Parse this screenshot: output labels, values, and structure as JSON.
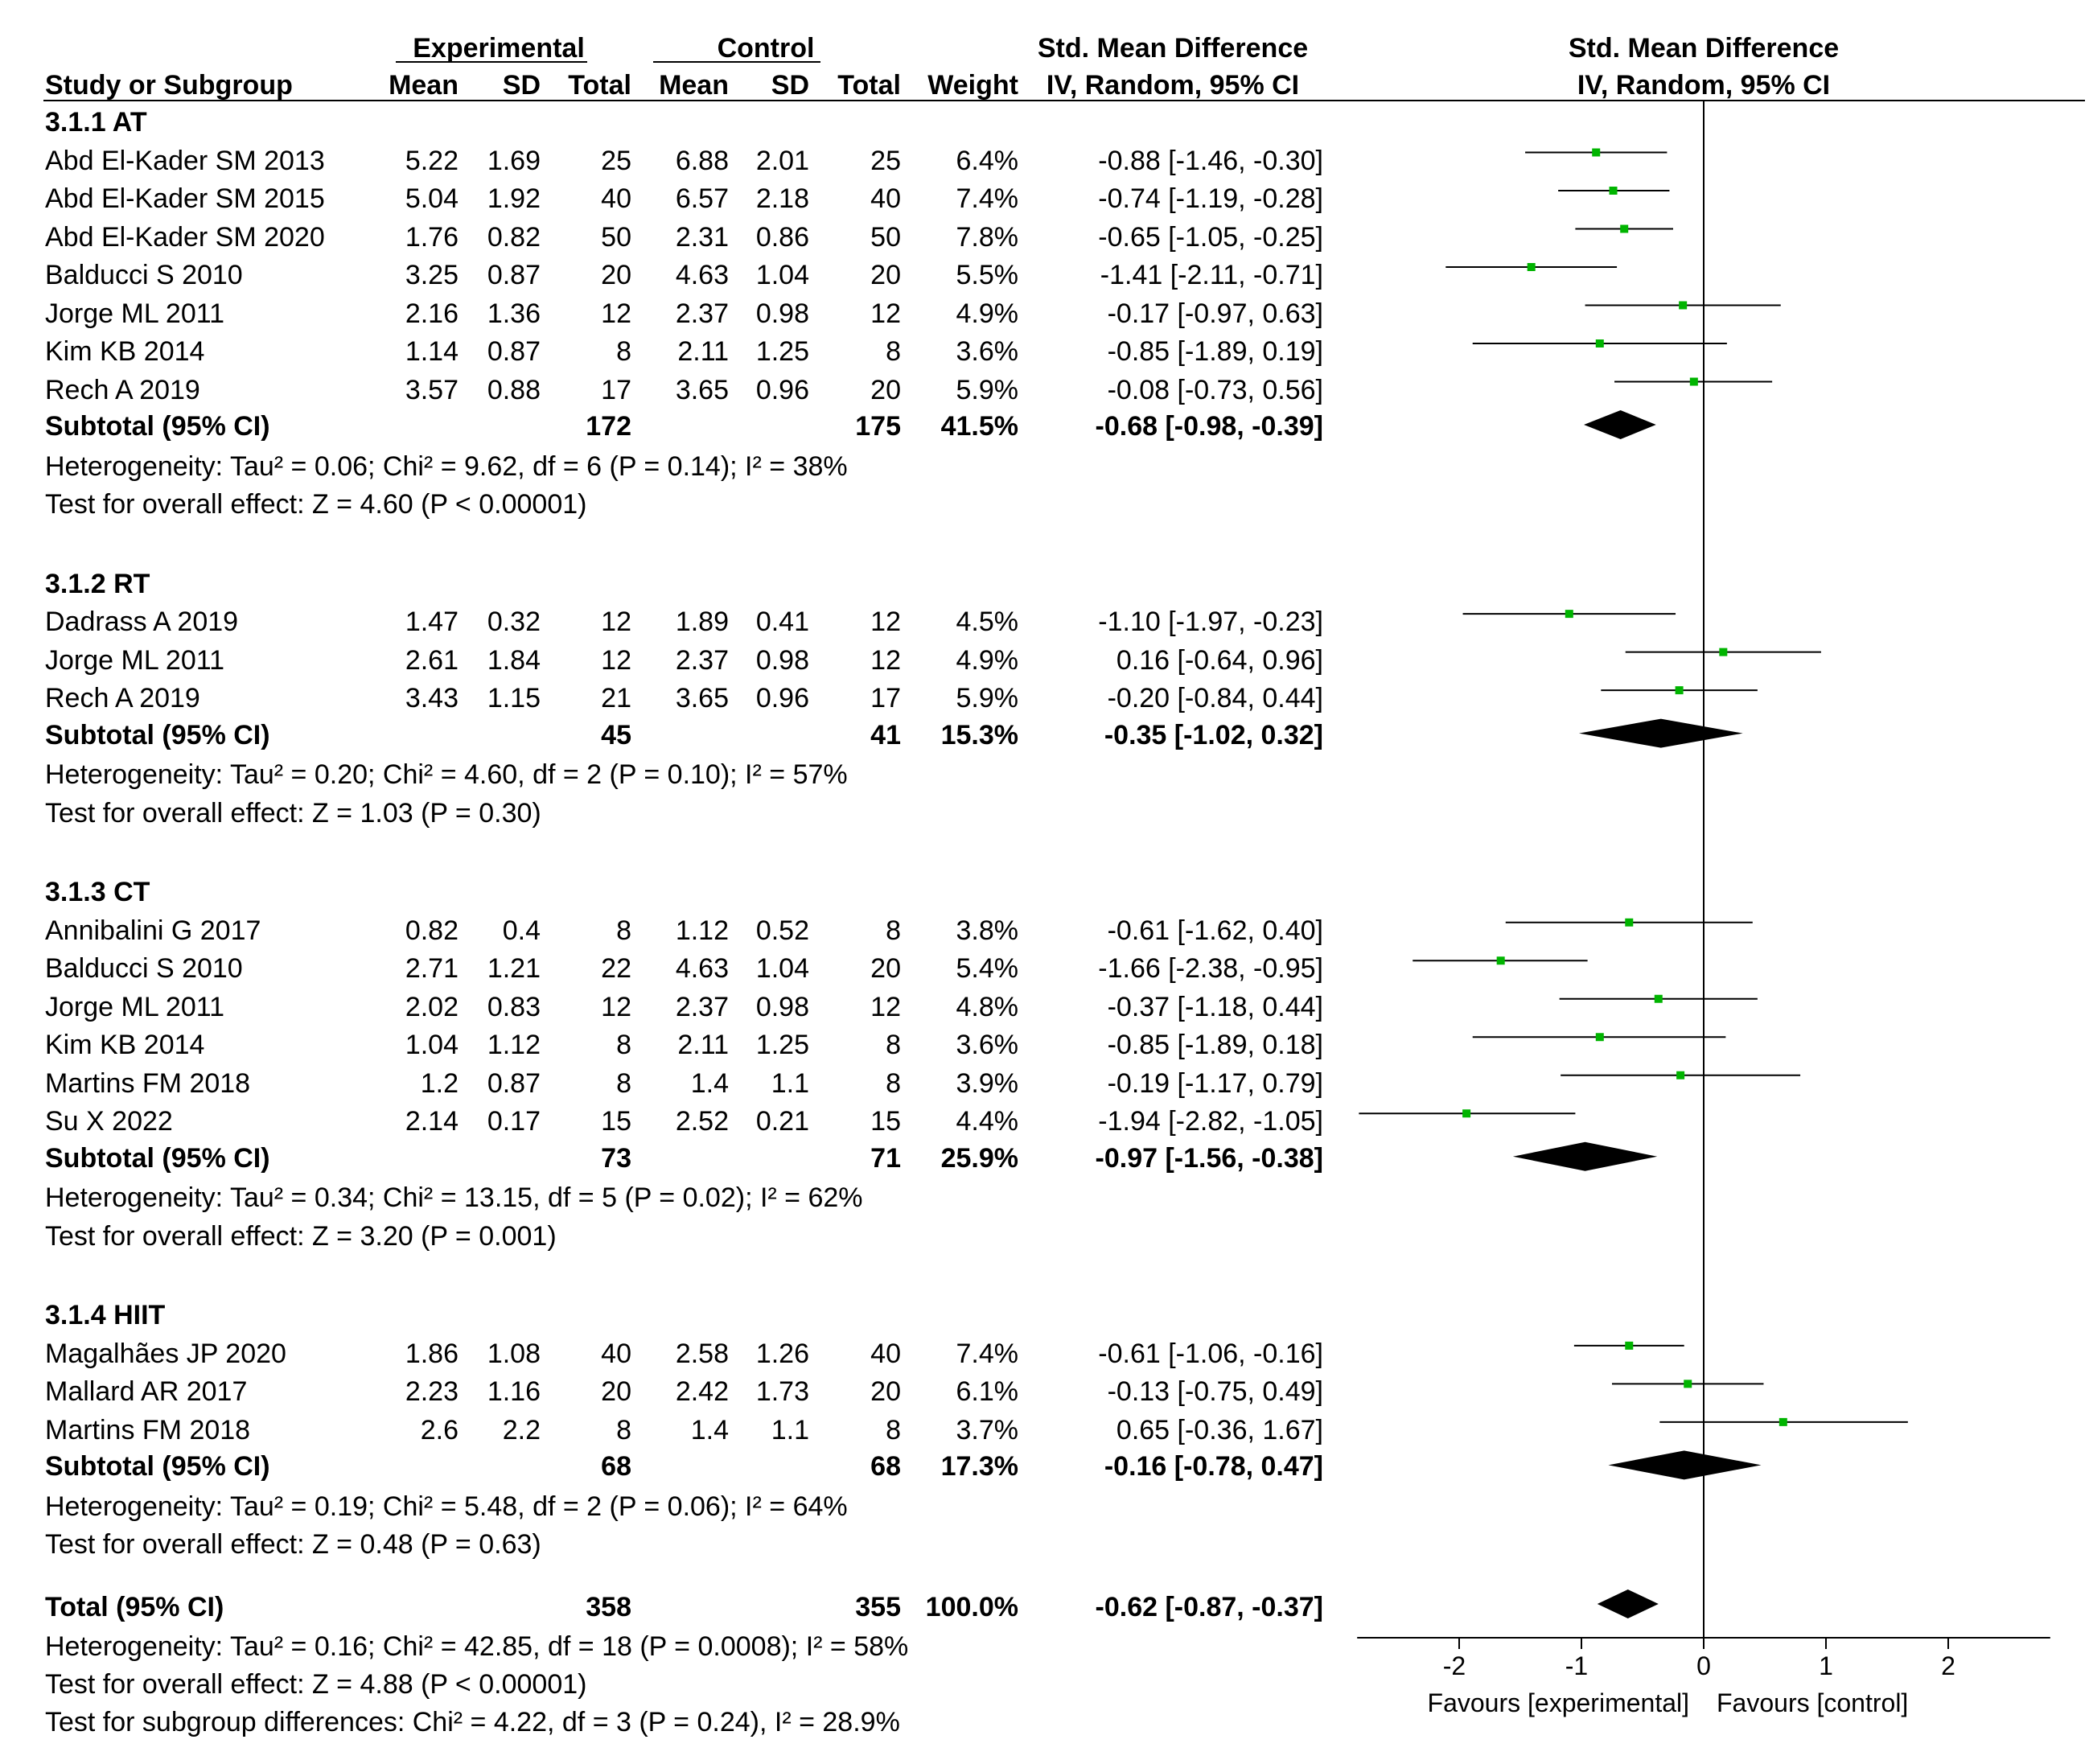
{
  "headers": {
    "group_experimental": "Experimental",
    "group_control": "Control",
    "smd_header_table": "Std. Mean Difference",
    "smd_header_plot": "Std. Mean Difference",
    "study": "Study or Subgroup",
    "mean_e": "Mean",
    "sd_e": "SD",
    "total_e": "Total",
    "mean_c": "Mean",
    "sd_c": "SD",
    "total_c": "Total",
    "weight": "Weight",
    "method_table": "IV, Random, 95% CI",
    "method_plot": "IV, Random, 95% CI"
  },
  "subgroups": [
    {
      "title": "3.1.1 AT",
      "studies": [
        {
          "name": "Abd El-Kader SM 2013",
          "mean_e": "5.22",
          "sd_e": "1.69",
          "n_e": "25",
          "mean_c": "6.88",
          "sd_c": "2.01",
          "n_c": "25",
          "weight": "6.4%",
          "ci_text": "-0.88 [-1.46, -0.30]",
          "est": -0.88,
          "lo": -1.46,
          "hi": -0.3
        },
        {
          "name": "Abd El-Kader SM 2015",
          "mean_e": "5.04",
          "sd_e": "1.92",
          "n_e": "40",
          "mean_c": "6.57",
          "sd_c": "2.18",
          "n_c": "40",
          "weight": "7.4%",
          "ci_text": "-0.74 [-1.19, -0.28]",
          "est": -0.74,
          "lo": -1.19,
          "hi": -0.28
        },
        {
          "name": "Abd El-Kader SM 2020",
          "mean_e": "1.76",
          "sd_e": "0.82",
          "n_e": "50",
          "mean_c": "2.31",
          "sd_c": "0.86",
          "n_c": "50",
          "weight": "7.8%",
          "ci_text": "-0.65 [-1.05, -0.25]",
          "est": -0.65,
          "lo": -1.05,
          "hi": -0.25
        },
        {
          "name": "Balducci S 2010",
          "mean_e": "3.25",
          "sd_e": "0.87",
          "n_e": "20",
          "mean_c": "4.63",
          "sd_c": "1.04",
          "n_c": "20",
          "weight": "5.5%",
          "ci_text": "-1.41 [-2.11, -0.71]",
          "est": -1.41,
          "lo": -2.11,
          "hi": -0.71
        },
        {
          "name": "Jorge ML 2011",
          "mean_e": "2.16",
          "sd_e": "1.36",
          "n_e": "12",
          "mean_c": "2.37",
          "sd_c": "0.98",
          "n_c": "12",
          "weight": "4.9%",
          "ci_text": "-0.17 [-0.97, 0.63]",
          "est": -0.17,
          "lo": -0.97,
          "hi": 0.63
        },
        {
          "name": "Kim KB 2014",
          "mean_e": "1.14",
          "sd_e": "0.87",
          "n_e": "8",
          "mean_c": "2.11",
          "sd_c": "1.25",
          "n_c": "8",
          "weight": "3.6%",
          "ci_text": "-0.85 [-1.89, 0.19]",
          "est": -0.85,
          "lo": -1.89,
          "hi": 0.19
        },
        {
          "name": "Rech A 2019",
          "mean_e": "3.57",
          "sd_e": "0.88",
          "n_e": "17",
          "mean_c": "3.65",
          "sd_c": "0.96",
          "n_c": "20",
          "weight": "5.9%",
          "ci_text": "-0.08 [-0.73, 0.56]",
          "est": -0.08,
          "lo": -0.73,
          "hi": 0.56
        }
      ],
      "subtotal": {
        "label": "Subtotal (95% CI)",
        "n_e": "172",
        "n_c": "175",
        "weight": "41.5%",
        "ci_text": "-0.68 [-0.98, -0.39]",
        "est": -0.68,
        "lo": -0.98,
        "hi": -0.39
      },
      "heterogeneity": "Heterogeneity: Tau² = 0.06; Chi² = 9.62, df = 6 (P = 0.14); I² = 38%",
      "overall": "Test for overall effect: Z = 4.60 (P < 0.00001)"
    },
    {
      "title": "3.1.2 RT",
      "studies": [
        {
          "name": "Dadrass A 2019",
          "mean_e": "1.47",
          "sd_e": "0.32",
          "n_e": "12",
          "mean_c": "1.89",
          "sd_c": "0.41",
          "n_c": "12",
          "weight": "4.5%",
          "ci_text": "-1.10 [-1.97, -0.23]",
          "est": -1.1,
          "lo": -1.97,
          "hi": -0.23
        },
        {
          "name": "Jorge ML 2011",
          "mean_e": "2.61",
          "sd_e": "1.84",
          "n_e": "12",
          "mean_c": "2.37",
          "sd_c": "0.98",
          "n_c": "12",
          "weight": "4.9%",
          "ci_text": "0.16 [-0.64, 0.96]",
          "est": 0.16,
          "lo": -0.64,
          "hi": 0.96
        },
        {
          "name": "Rech A 2019",
          "mean_e": "3.43",
          "sd_e": "1.15",
          "n_e": "21",
          "mean_c": "3.65",
          "sd_c": "0.96",
          "n_c": "17",
          "weight": "5.9%",
          "ci_text": "-0.20 [-0.84, 0.44]",
          "est": -0.2,
          "lo": -0.84,
          "hi": 0.44
        }
      ],
      "subtotal": {
        "label": "Subtotal (95% CI)",
        "n_e": "45",
        "n_c": "41",
        "weight": "15.3%",
        "ci_text": "-0.35 [-1.02, 0.32]",
        "est": -0.35,
        "lo": -1.02,
        "hi": 0.32
      },
      "heterogeneity": "Heterogeneity: Tau² = 0.20; Chi² = 4.60, df = 2 (P = 0.10); I² = 57%",
      "overall": "Test for overall effect: Z = 1.03 (P = 0.30)"
    },
    {
      "title": "3.1.3 CT",
      "studies": [
        {
          "name": "Annibalini G 2017",
          "mean_e": "0.82",
          "sd_e": "0.4",
          "n_e": "8",
          "mean_c": "1.12",
          "sd_c": "0.52",
          "n_c": "8",
          "weight": "3.8%",
          "ci_text": "-0.61 [-1.62, 0.40]",
          "est": -0.61,
          "lo": -1.62,
          "hi": 0.4
        },
        {
          "name": "Balducci S 2010",
          "mean_e": "2.71",
          "sd_e": "1.21",
          "n_e": "22",
          "mean_c": "4.63",
          "sd_c": "1.04",
          "n_c": "20",
          "weight": "5.4%",
          "ci_text": "-1.66 [-2.38, -0.95]",
          "est": -1.66,
          "lo": -2.38,
          "hi": -0.95
        },
        {
          "name": "Jorge ML 2011",
          "mean_e": "2.02",
          "sd_e": "0.83",
          "n_e": "12",
          "mean_c": "2.37",
          "sd_c": "0.98",
          "n_c": "12",
          "weight": "4.8%",
          "ci_text": "-0.37 [-1.18, 0.44]",
          "est": -0.37,
          "lo": -1.18,
          "hi": 0.44
        },
        {
          "name": "Kim KB 2014",
          "mean_e": "1.04",
          "sd_e": "1.12",
          "n_e": "8",
          "mean_c": "2.11",
          "sd_c": "1.25",
          "n_c": "8",
          "weight": "3.6%",
          "ci_text": "-0.85 [-1.89, 0.18]",
          "est": -0.85,
          "lo": -1.89,
          "hi": 0.18
        },
        {
          "name": "Martins FM 2018",
          "mean_e": "1.2",
          "sd_e": "0.87",
          "n_e": "8",
          "mean_c": "1.4",
          "sd_c": "1.1",
          "n_c": "8",
          "weight": "3.9%",
          "ci_text": "-0.19 [-1.17, 0.79]",
          "est": -0.19,
          "lo": -1.17,
          "hi": 0.79
        },
        {
          "name": "Su X 2022",
          "mean_e": "2.14",
          "sd_e": "0.17",
          "n_e": "15",
          "mean_c": "2.52",
          "sd_c": "0.21",
          "n_c": "15",
          "weight": "4.4%",
          "ci_text": "-1.94 [-2.82, -1.05]",
          "est": -1.94,
          "lo": -2.82,
          "hi": -1.05
        }
      ],
      "subtotal": {
        "label": "Subtotal (95% CI)",
        "n_e": "73",
        "n_c": "71",
        "weight": "25.9%",
        "ci_text": "-0.97 [-1.56, -0.38]",
        "est": -0.97,
        "lo": -1.56,
        "hi": -0.38
      },
      "heterogeneity": "Heterogeneity: Tau² = 0.34; Chi² = 13.15, df = 5 (P = 0.02); I² = 62%",
      "overall": "Test for overall effect: Z = 3.20 (P = 0.001)"
    },
    {
      "title": "3.1.4 HIIT",
      "studies": [
        {
          "name": "Magalhães JP 2020",
          "mean_e": "1.86",
          "sd_e": "1.08",
          "n_e": "40",
          "mean_c": "2.58",
          "sd_c": "1.26",
          "n_c": "40",
          "weight": "7.4%",
          "ci_text": "-0.61 [-1.06, -0.16]",
          "est": -0.61,
          "lo": -1.06,
          "hi": -0.16
        },
        {
          "name": "Mallard AR 2017",
          "mean_e": "2.23",
          "sd_e": "1.16",
          "n_e": "20",
          "mean_c": "2.42",
          "sd_c": "1.73",
          "n_c": "20",
          "weight": "6.1%",
          "ci_text": "-0.13 [-0.75, 0.49]",
          "est": -0.13,
          "lo": -0.75,
          "hi": 0.49
        },
        {
          "name": "Martins FM 2018",
          "mean_e": "2.6",
          "sd_e": "2.2",
          "n_e": "8",
          "mean_c": "1.4",
          "sd_c": "1.1",
          "n_c": "8",
          "weight": "3.7%",
          "ci_text": "0.65 [-0.36, 1.67]",
          "est": 0.65,
          "lo": -0.36,
          "hi": 1.67
        }
      ],
      "subtotal": {
        "label": "Subtotal (95% CI)",
        "n_e": "68",
        "n_c": "68",
        "weight": "17.3%",
        "ci_text": "-0.16 [-0.78, 0.47]",
        "est": -0.16,
        "lo": -0.78,
        "hi": 0.47
      },
      "heterogeneity": "Heterogeneity: Tau² = 0.19; Chi² = 5.48, df = 2 (P = 0.06); I² = 64%",
      "overall": "Test for overall effect: Z = 0.48 (P = 0.63)"
    }
  ],
  "total": {
    "label": "Total (95% CI)",
    "n_e": "358",
    "n_c": "355",
    "weight": "100.0%",
    "ci_text": "-0.62 [-0.87, -0.37]",
    "est": -0.62,
    "lo": -0.87,
    "hi": -0.37,
    "heterogeneity": "Heterogeneity: Tau² = 0.16; Chi² = 42.85, df = 18 (P = 0.0008); I² = 58%",
    "overall": "Test for overall effect: Z = 4.88 (P < 0.00001)",
    "subgroup_diff": "Test for subgroup differences: Chi² = 4.22, df = 3 (P = 0.24), I² = 28.9%"
  },
  "chart_data": {
    "type": "forest",
    "title": "Std. Mean Difference",
    "xlabel": "IV, Random, 95% CI",
    "xlim": [
      -2.9,
      2.9
    ],
    "xticks": [
      -2,
      -1,
      0,
      1,
      2
    ],
    "xtick_labels": [
      "-2",
      "-1",
      "0",
      "1",
      "2"
    ],
    "left_label": "Favours [experimental]",
    "right_label": "Favours [control]",
    "point_color": "#00b400",
    "line_color": "#000000"
  }
}
